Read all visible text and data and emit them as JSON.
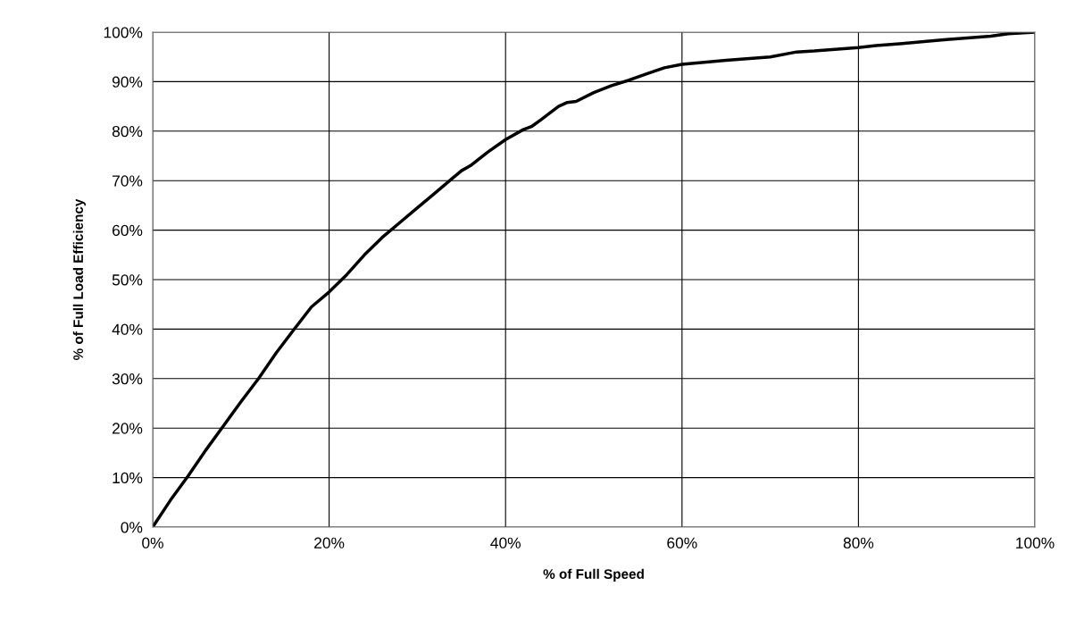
{
  "chart_data": {
    "type": "line",
    "xlabel": "% of Full Speed",
    "ylabel": "% of Full Load Efficiency",
    "x": [
      0,
      2,
      4,
      6,
      8,
      10,
      12,
      14,
      16,
      18,
      20,
      22,
      24,
      26,
      28,
      30,
      32,
      34,
      35,
      36,
      38,
      40,
      42,
      43,
      44,
      46,
      47,
      48,
      50,
      52,
      54,
      56,
      58,
      60,
      65,
      70,
      73,
      75,
      80,
      82,
      85,
      88,
      90,
      95,
      97,
      100
    ],
    "series": [
      {
        "color": "#000000",
        "values": [
          0,
          5.4,
          10.3,
          15.5,
          20.4,
          25.3,
          30,
          35.2,
          39.9,
          44.5,
          47.5,
          51,
          55,
          58.5,
          61.5,
          64.5,
          67.5,
          70.5,
          72,
          73,
          75.8,
          78.3,
          80.3,
          81,
          82.3,
          85,
          85.8,
          86,
          87.8,
          89.2,
          90.3,
          91.6,
          92.8,
          93.5,
          94.3,
          95,
          96,
          96.2,
          96.9,
          97.3,
          97.7,
          98.2,
          98.5,
          99.2,
          99.7,
          100
        ]
      }
    ],
    "xlim": [
      0,
      100
    ],
    "ylim": [
      0,
      100
    ],
    "xticks": [
      {
        "value": 0,
        "label": "0%"
      },
      {
        "value": 20,
        "label": "20%"
      },
      {
        "value": 40,
        "label": "40%"
      },
      {
        "value": 60,
        "label": "60%"
      },
      {
        "value": 80,
        "label": "80%"
      },
      {
        "value": 100,
        "label": "100%"
      }
    ],
    "yticks": [
      {
        "value": 0,
        "label": "0%"
      },
      {
        "value": 10,
        "label": "10%"
      },
      {
        "value": 20,
        "label": "20%"
      },
      {
        "value": 30,
        "label": "30%"
      },
      {
        "value": 40,
        "label": "40%"
      },
      {
        "value": 50,
        "label": "50%"
      },
      {
        "value": 60,
        "label": "60%"
      },
      {
        "value": 70,
        "label": "70%"
      },
      {
        "value": 80,
        "label": "80%"
      },
      {
        "value": 90,
        "label": "90%"
      },
      {
        "value": 100,
        "label": "100%"
      }
    ],
    "grid": true,
    "legend": false,
    "marker": "none",
    "line_style": "solid"
  }
}
